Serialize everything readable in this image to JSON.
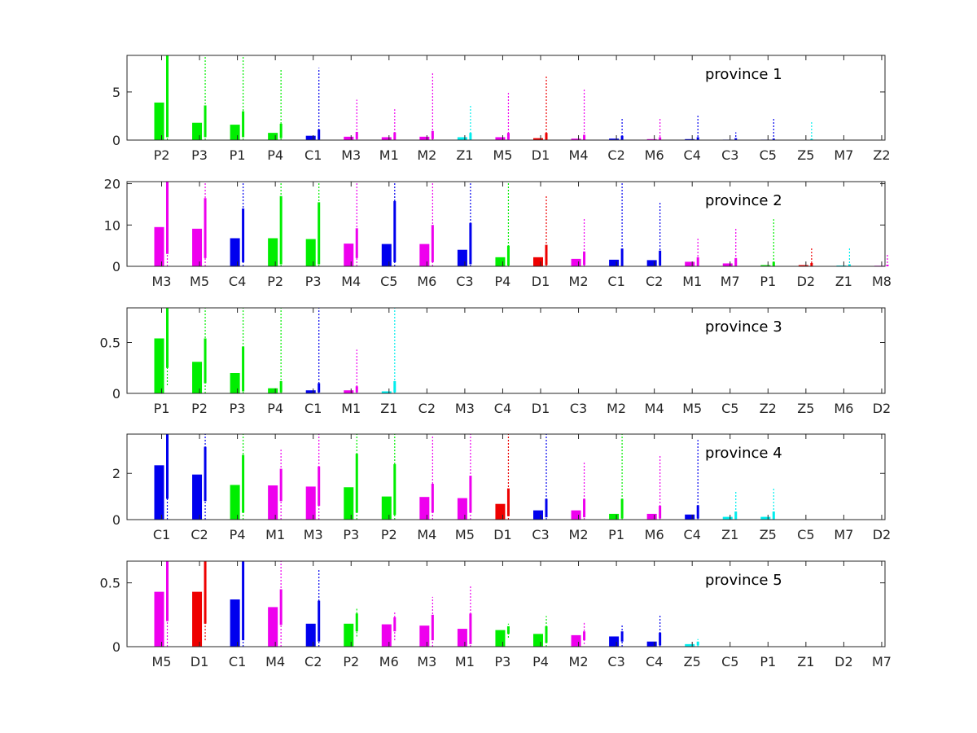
{
  "chart_data": [
    {
      "type": "bar",
      "label": "province 1",
      "ylim": [
        0,
        8.8
      ],
      "yticks": [
        0,
        5
      ],
      "categories": [
        "P2",
        "P3",
        "P1",
        "P4",
        "C1",
        "M3",
        "M1",
        "M2",
        "Z1",
        "M5",
        "D1",
        "M4",
        "C2",
        "M6",
        "C4",
        "C3",
        "C5",
        "Z5",
        "M7",
        "Z2"
      ],
      "values": [
        3.9,
        1.8,
        1.6,
        0.75,
        0.45,
        0.35,
        0.3,
        0.35,
        0.3,
        0.3,
        0.2,
        0.15,
        0.15,
        0.1,
        0.1,
        0.05,
        0.05,
        0.02,
        0,
        0
      ],
      "ci_solid": [
        [
          0.3,
          8.8
        ],
        [
          0.3,
          3.6
        ],
        [
          0.3,
          3.0
        ],
        [
          0.2,
          1.7
        ],
        [
          0.05,
          1.1
        ],
        [
          0.1,
          0.85
        ],
        [
          0.05,
          0.8
        ],
        [
          0.1,
          0.95
        ],
        [
          0.05,
          0.75
        ],
        [
          0.05,
          0.75
        ],
        [
          0.05,
          0.75
        ],
        [
          0.02,
          0.55
        ],
        [
          0.02,
          0.45
        ],
        [
          0.02,
          0.3
        ],
        [
          0.02,
          0.3
        ],
        [
          0.01,
          0.2
        ],
        [
          0.01,
          0.15
        ],
        [
          0.01,
          0.12
        ],
        [
          0,
          0
        ],
        [
          0,
          0
        ]
      ],
      "ci_dotted": [
        [
          0,
          8.8
        ],
        [
          0,
          8.8
        ],
        [
          0,
          8.8
        ],
        [
          0,
          7.4
        ],
        [
          0,
          7.5
        ],
        [
          0,
          4.2
        ],
        [
          0,
          3.2
        ],
        [
          0,
          7.0
        ],
        [
          0,
          3.6
        ],
        [
          0,
          4.9
        ],
        [
          0,
          6.6
        ],
        [
          0,
          5.3
        ],
        [
          0,
          2.2
        ],
        [
          0,
          2.3
        ],
        [
          0,
          2.6
        ],
        [
          0,
          0.8
        ],
        [
          0,
          2.3
        ],
        [
          0,
          1.9
        ],
        [
          0,
          0
        ],
        [
          0,
          0
        ]
      ],
      "colors": [
        "#00ee00",
        "#00ee00",
        "#00ee00",
        "#00ee00",
        "#0000ee",
        "#ee00ee",
        "#ee00ee",
        "#ee00ee",
        "#00eeee",
        "#ee00ee",
        "#ee0000",
        "#ee00ee",
        "#0000ee",
        "#ee00ee",
        "#0000ee",
        "#0000ee",
        "#0000ee",
        "#00eeee",
        "#ee00ee",
        "#00eeee"
      ]
    },
    {
      "type": "bar",
      "label": "province 2",
      "ylim": [
        0,
        20.5
      ],
      "yticks": [
        0,
        10,
        20
      ],
      "categories": [
        "M3",
        "M5",
        "C4",
        "P2",
        "P3",
        "M4",
        "C5",
        "M6",
        "C3",
        "P4",
        "D1",
        "M2",
        "C1",
        "C2",
        "M1",
        "M7",
        "P1",
        "D2",
        "Z1",
        "M8"
      ],
      "values": [
        9.5,
        9.1,
        6.8,
        6.8,
        6.6,
        5.5,
        5.4,
        5.4,
        4.0,
        2.2,
        2.2,
        1.8,
        1.6,
        1.5,
        1.1,
        0.7,
        0.3,
        0.3,
        0.2,
        0.15
      ],
      "ci_solid": [
        [
          3,
          20.5
        ],
        [
          2,
          16.5
        ],
        [
          1,
          14
        ],
        [
          0.5,
          17
        ],
        [
          0.5,
          15.5
        ],
        [
          2,
          9.2
        ],
        [
          1,
          15.8
        ],
        [
          1,
          10
        ],
        [
          0.5,
          10.5
        ],
        [
          0.2,
          5.0
        ],
        [
          0.3,
          5.2
        ],
        [
          0.3,
          3.6
        ],
        [
          0.1,
          4.3
        ],
        [
          0.2,
          3.8
        ],
        [
          0.1,
          2.2
        ],
        [
          0.1,
          2.0
        ],
        [
          0.05,
          1.1
        ],
        [
          0.05,
          0.8
        ],
        [
          0.02,
          0.5
        ],
        [
          0.02,
          0.4
        ]
      ],
      "ci_dotted": [
        [
          0,
          20.5
        ],
        [
          0,
          20.5
        ],
        [
          0,
          20.5
        ],
        [
          0,
          20.5
        ],
        [
          0,
          20.5
        ],
        [
          0,
          20.5
        ],
        [
          0,
          20.5
        ],
        [
          0,
          20.5
        ],
        [
          0,
          20.5
        ],
        [
          0,
          20.5
        ],
        [
          0,
          17.2
        ],
        [
          0,
          11.6
        ],
        [
          0,
          20.5
        ],
        [
          0,
          15.4
        ],
        [
          0,
          6.8
        ],
        [
          0,
          9.4
        ],
        [
          0,
          11.4
        ],
        [
          0,
          4.4
        ],
        [
          0,
          4.4
        ],
        [
          0,
          3.0
        ]
      ],
      "colors": [
        "#ee00ee",
        "#ee00ee",
        "#0000ee",
        "#00ee00",
        "#00ee00",
        "#ee00ee",
        "#0000ee",
        "#ee00ee",
        "#0000ee",
        "#00ee00",
        "#ee0000",
        "#ee00ee",
        "#0000ee",
        "#0000ee",
        "#ee00ee",
        "#ee00ee",
        "#00ee00",
        "#ee0000",
        "#00eeee",
        "#ee00ee"
      ]
    },
    {
      "type": "bar",
      "label": "province 3",
      "ylim": [
        0,
        0.84
      ],
      "yticks": [
        0,
        0.5
      ],
      "categories": [
        "P1",
        "P2",
        "P3",
        "P4",
        "C1",
        "M1",
        "Z1",
        "C2",
        "M3",
        "C4",
        "D1",
        "C3",
        "M2",
        "M4",
        "M5",
        "C5",
        "Z2",
        "Z5",
        "M6",
        "D2"
      ],
      "values": [
        0.54,
        0.31,
        0.2,
        0.05,
        0.03,
        0.03,
        0.02,
        0,
        0,
        0,
        0,
        0,
        0,
        0,
        0,
        0,
        0,
        0,
        0,
        0
      ],
      "ci_solid": [
        [
          0.25,
          0.84
        ],
        [
          0.1,
          0.54
        ],
        [
          0.02,
          0.46
        ],
        [
          0.01,
          0.12
        ],
        [
          0.01,
          0.1
        ],
        [
          0.01,
          0.07
        ],
        [
          0.01,
          0.12
        ],
        [
          0,
          0
        ],
        [
          0,
          0
        ],
        [
          0,
          0
        ],
        [
          0,
          0
        ],
        [
          0,
          0
        ],
        [
          0,
          0
        ],
        [
          0,
          0
        ],
        [
          0,
          0
        ],
        [
          0,
          0
        ],
        [
          0,
          0
        ],
        [
          0,
          0
        ],
        [
          0,
          0
        ],
        [
          0,
          0
        ]
      ],
      "ci_dotted": [
        [
          0.08,
          0.84
        ],
        [
          0,
          0.84
        ],
        [
          0,
          0.84
        ],
        [
          0,
          0.84
        ],
        [
          0,
          0.84
        ],
        [
          0,
          0.43
        ],
        [
          0,
          0.84
        ],
        [
          0,
          0
        ],
        [
          0,
          0
        ],
        [
          0,
          0
        ],
        [
          0,
          0
        ],
        [
          0,
          0
        ],
        [
          0,
          0
        ],
        [
          0,
          0
        ],
        [
          0,
          0
        ],
        [
          0,
          0
        ],
        [
          0,
          0
        ],
        [
          0,
          0
        ],
        [
          0,
          0
        ],
        [
          0,
          0
        ]
      ],
      "colors": [
        "#00ee00",
        "#00ee00",
        "#00ee00",
        "#00ee00",
        "#0000ee",
        "#ee00ee",
        "#00eeee",
        "#0000ee",
        "#ee00ee",
        "#0000ee",
        "#ee0000",
        "#0000ee",
        "#ee00ee",
        "#ee00ee",
        "#ee00ee",
        "#0000ee",
        "#00eeee",
        "#00eeee",
        "#ee00ee",
        "#ee0000"
      ]
    },
    {
      "type": "bar",
      "label": "province 4",
      "ylim": [
        0,
        3.7
      ],
      "yticks": [
        0,
        2
      ],
      "categories": [
        "C1",
        "C2",
        "P4",
        "M1",
        "M3",
        "P3",
        "P2",
        "M4",
        "M5",
        "D1",
        "C3",
        "M2",
        "P1",
        "M6",
        "C4",
        "Z1",
        "Z5",
        "C5",
        "M7",
        "D2"
      ],
      "values": [
        2.35,
        1.95,
        1.5,
        1.48,
        1.43,
        1.4,
        1.0,
        0.98,
        0.93,
        0.68,
        0.4,
        0.4,
        0.25,
        0.25,
        0.22,
        0.12,
        0.12,
        0,
        0,
        0
      ],
      "ci_solid": [
        [
          0.9,
          3.7
        ],
        [
          0.8,
          3.15
        ],
        [
          0.3,
          2.8
        ],
        [
          0.8,
          2.2
        ],
        [
          0.6,
          2.3
        ],
        [
          0.3,
          2.85
        ],
        [
          0.2,
          2.4
        ],
        [
          0.3,
          1.55
        ],
        [
          0.3,
          1.9
        ],
        [
          0.15,
          1.35
        ],
        [
          0.1,
          0.9
        ],
        [
          0.1,
          0.9
        ],
        [
          0.05,
          0.9
        ],
        [
          0.05,
          0.6
        ],
        [
          0.05,
          0.62
        ],
        [
          0.02,
          0.35
        ],
        [
          0.02,
          0.35
        ],
        [
          0,
          0
        ],
        [
          0,
          0
        ],
        [
          0,
          0
        ]
      ],
      "ci_dotted": [
        [
          0,
          3.7
        ],
        [
          0,
          3.7
        ],
        [
          0,
          3.7
        ],
        [
          0,
          3.1
        ],
        [
          0,
          3.7
        ],
        [
          0,
          3.7
        ],
        [
          0,
          3.7
        ],
        [
          0,
          3.6
        ],
        [
          0,
          3.7
        ],
        [
          0,
          3.7
        ],
        [
          0,
          3.7
        ],
        [
          0,
          2.5
        ],
        [
          0,
          3.7
        ],
        [
          0,
          2.8
        ],
        [
          0,
          3.45
        ],
        [
          0,
          1.25
        ],
        [
          0,
          1.4
        ],
        [
          0,
          0
        ],
        [
          0,
          0
        ],
        [
          0,
          0
        ]
      ],
      "colors": [
        "#0000ee",
        "#0000ee",
        "#00ee00",
        "#ee00ee",
        "#ee00ee",
        "#00ee00",
        "#00ee00",
        "#ee00ee",
        "#ee00ee",
        "#ee0000",
        "#0000ee",
        "#ee00ee",
        "#00ee00",
        "#ee00ee",
        "#0000ee",
        "#00eeee",
        "#00eeee",
        "#0000ee",
        "#ee00ee",
        "#ee0000"
      ]
    },
    {
      "type": "bar",
      "label": "province 5",
      "ylim": [
        0,
        0.67
      ],
      "yticks": [
        0,
        0.5
      ],
      "categories": [
        "M5",
        "D1",
        "C1",
        "M4",
        "C2",
        "P2",
        "M6",
        "M3",
        "M1",
        "P3",
        "P4",
        "M2",
        "C3",
        "C4",
        "Z5",
        "C5",
        "P1",
        "Z1",
        "D2",
        "M7"
      ],
      "values": [
        0.43,
        0.43,
        0.37,
        0.31,
        0.18,
        0.18,
        0.175,
        0.165,
        0.14,
        0.13,
        0.1,
        0.09,
        0.08,
        0.04,
        0.02,
        0,
        0,
        0,
        0,
        0
      ],
      "ci_solid": [
        [
          0.2,
          0.67
        ],
        [
          0.18,
          0.67
        ],
        [
          0.05,
          0.67
        ],
        [
          0.17,
          0.45
        ],
        [
          0.04,
          0.36
        ],
        [
          0.12,
          0.26
        ],
        [
          0.12,
          0.23
        ],
        [
          0.05,
          0.25
        ],
        [
          0.02,
          0.26
        ],
        [
          0.1,
          0.16
        ],
        [
          0.03,
          0.16
        ],
        [
          0.05,
          0.12
        ],
        [
          0.04,
          0.12
        ],
        [
          0.01,
          0.11
        ],
        [
          0.01,
          0.04
        ],
        [
          0,
          0
        ],
        [
          0,
          0
        ],
        [
          0,
          0
        ],
        [
          0,
          0
        ],
        [
          0,
          0
        ]
      ],
      "ci_dotted": [
        [
          0,
          0.67
        ],
        [
          0.05,
          0.67
        ],
        [
          0,
          0.67
        ],
        [
          0,
          0.67
        ],
        [
          0,
          0.6
        ],
        [
          0.08,
          0.3
        ],
        [
          0.05,
          0.27
        ],
        [
          0,
          0.39
        ],
        [
          0,
          0.48
        ],
        [
          0.07,
          0.18
        ],
        [
          0,
          0.24
        ],
        [
          0.02,
          0.19
        ],
        [
          0,
          0.17
        ],
        [
          0,
          0.25
        ],
        [
          0,
          0.06
        ],
        [
          0,
          0
        ],
        [
          0,
          0
        ],
        [
          0,
          0
        ],
        [
          0,
          0
        ],
        [
          0,
          0
        ]
      ],
      "colors": [
        "#ee00ee",
        "#ee0000",
        "#0000ee",
        "#ee00ee",
        "#0000ee",
        "#00ee00",
        "#ee00ee",
        "#ee00ee",
        "#ee00ee",
        "#00ee00",
        "#00ee00",
        "#ee00ee",
        "#0000ee",
        "#0000ee",
        "#00eeee",
        "#0000ee",
        "#00ee00",
        "#00eeee",
        "#ee0000",
        "#ee00ee"
      ]
    }
  ]
}
